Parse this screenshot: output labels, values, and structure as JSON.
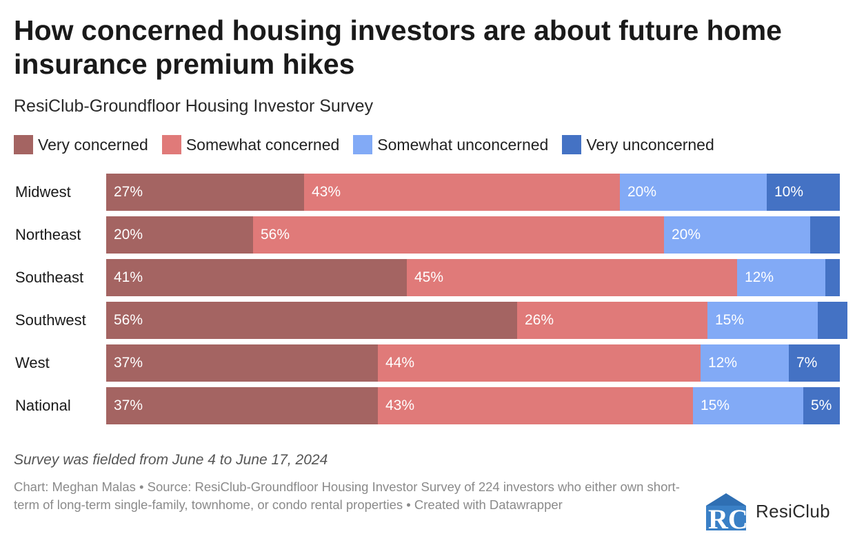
{
  "title": "How concerned housing investors are about future home insurance premium hikes",
  "subtitle": "ResiClub-Groundfloor Housing Investor Survey",
  "note": "Survey was fielded from June 4 to June 17, 2024",
  "source": "Chart: Meghan Malas • Source: ResiClub-Groundfloor Housing Investor Survey of 224 investors who either own short-term of long-term single-family, townhome, or condo rental properties • Created with Datawrapper",
  "logo": {
    "text": "ResiClub",
    "icon": "resiclub-logo-icon"
  },
  "chart_data": {
    "type": "bar",
    "orientation": "horizontal",
    "stacked": true,
    "legend_position": "top",
    "categories": [
      "Midwest",
      "Northeast",
      "Southeast",
      "Southwest",
      "West",
      "National"
    ],
    "series": [
      {
        "name": "Very concerned",
        "color": "#a46462",
        "values": [
          27,
          20,
          41,
          56,
          37,
          37
        ],
        "labels": [
          "27%",
          "20%",
          "41%",
          "56%",
          "37%",
          "37%"
        ]
      },
      {
        "name": "Somewhat concerned",
        "color": "#e07a79",
        "values": [
          43,
          56,
          45,
          26,
          44,
          43
        ],
        "labels": [
          "43%",
          "56%",
          "45%",
          "26%",
          "44%",
          "43%"
        ]
      },
      {
        "name": "Somewhat unconcerned",
        "color": "#82aaf6",
        "values": [
          20,
          20,
          12,
          15,
          12,
          15
        ],
        "labels": [
          "20%",
          "20%",
          "12%",
          "15%",
          "12%",
          "15%"
        ]
      },
      {
        "name": "Very unconcerned",
        "color": "#4472c4",
        "values": [
          10,
          4,
          2,
          4,
          7,
          5
        ],
        "labels": [
          "10%",
          "",
          "",
          "",
          "7%",
          "5%"
        ]
      }
    ],
    "xlim": [
      0,
      100
    ]
  }
}
